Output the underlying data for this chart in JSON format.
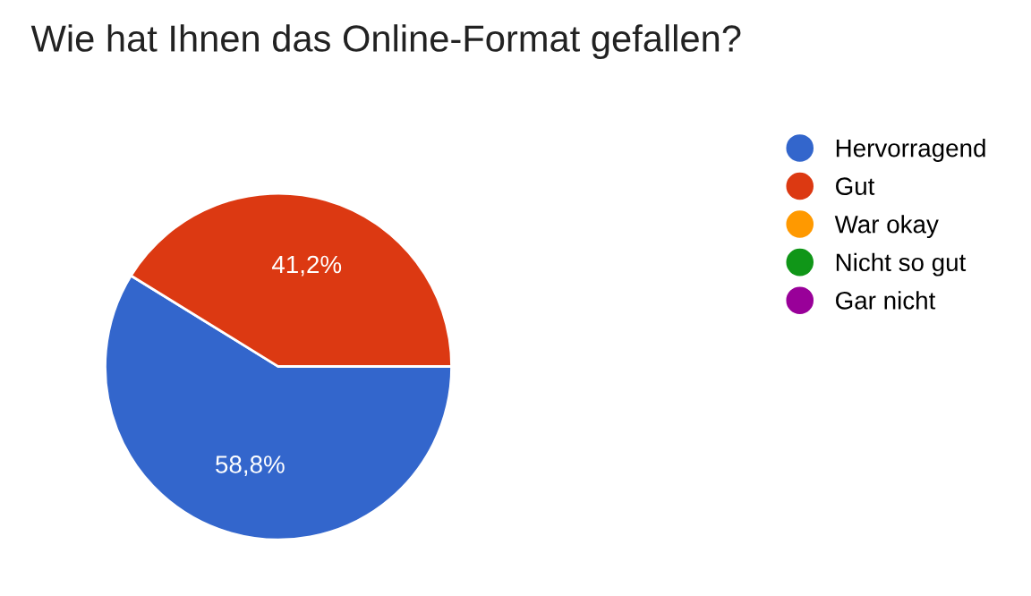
{
  "chart_data": {
    "type": "pie",
    "title": "Wie hat Ihnen das Online-Format gefallen?",
    "categories": [
      "Hervorragend",
      "Gut",
      "War okay",
      "Nicht so gut",
      "Gar nicht"
    ],
    "values": [
      58.8,
      41.2,
      0,
      0,
      0
    ],
    "value_labels": [
      "58,8%",
      "41,2%",
      null,
      null,
      null
    ],
    "colors": [
      "#3366cc",
      "#dc3912",
      "#ff9900",
      "#109618",
      "#990099"
    ],
    "legend": "right"
  }
}
